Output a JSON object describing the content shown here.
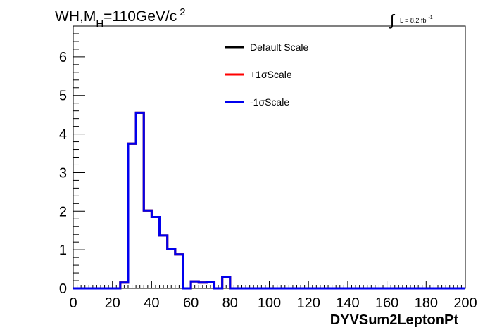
{
  "chart_data": {
    "type": "line",
    "title": {
      "main": "WH,M",
      "sub": "H",
      "rest": "=110GeV/c",
      "sup": "2"
    },
    "lumi": {
      "integral": "∫",
      "text": "L = 8.2 fb",
      "sup": "-1"
    },
    "xlabel": "DYVSum2LeptonPt",
    "ylabel": "",
    "xlim": [
      0,
      200
    ],
    "ylim": [
      0,
      6.8
    ],
    "x_ticks": [
      "0",
      "20",
      "40",
      "60",
      "80",
      "100",
      "120",
      "140",
      "160",
      "180",
      "200"
    ],
    "y_ticks": [
      "0",
      "1",
      "2",
      "3",
      "4",
      "5",
      "6"
    ],
    "grid": false,
    "legend_position": "top-center",
    "bin_width": 4,
    "x_edges": [
      0,
      4,
      8,
      12,
      16,
      20,
      24,
      28,
      32,
      36,
      40,
      44,
      48,
      52,
      56,
      60,
      64,
      68,
      72,
      76,
      80,
      84,
      88,
      92,
      96,
      100,
      104,
      108,
      112,
      116,
      120,
      124,
      128,
      132,
      136,
      140,
      144,
      148,
      152,
      156,
      160,
      164,
      168,
      172,
      176,
      180,
      184,
      188,
      192,
      196,
      200
    ],
    "series": [
      {
        "name": "Default Scale",
        "color": "#000000",
        "values": [
          0,
          0,
          0,
          0,
          0,
          0,
          0.15,
          3.75,
          4.55,
          2.02,
          1.85,
          1.37,
          1.02,
          0.88,
          0,
          0.18,
          0.15,
          0.17,
          0,
          0.3,
          0,
          0,
          0,
          0,
          0,
          0,
          0,
          0,
          0,
          0,
          0,
          0,
          0,
          0,
          0,
          0,
          0,
          0,
          0,
          0,
          0,
          0,
          0,
          0,
          0,
          0,
          0,
          0,
          0,
          0
        ]
      },
      {
        "name": "+1σScale",
        "color": "#ff0000",
        "values": [
          0,
          0,
          0,
          0,
          0,
          0,
          0.15,
          3.75,
          4.55,
          2.02,
          1.85,
          1.37,
          1.02,
          0.88,
          0,
          0.18,
          0.15,
          0.17,
          0,
          0.3,
          0,
          0,
          0,
          0,
          0,
          0,
          0,
          0,
          0,
          0,
          0,
          0,
          0,
          0,
          0,
          0,
          0,
          0,
          0,
          0,
          0,
          0,
          0,
          0,
          0,
          0,
          0,
          0,
          0,
          0
        ]
      },
      {
        "name": "-1σScale",
        "color": "#0000ee",
        "values": [
          0,
          0,
          0,
          0,
          0,
          0,
          0.15,
          3.75,
          4.55,
          2.02,
          1.85,
          1.37,
          1.02,
          0.88,
          0,
          0.18,
          0.15,
          0.17,
          0,
          0.3,
          0,
          0,
          0,
          0,
          0,
          0,
          0,
          0,
          0,
          0,
          0,
          0,
          0,
          0,
          0,
          0,
          0,
          0,
          0,
          0,
          0,
          0,
          0,
          0,
          0,
          0,
          0,
          0,
          0,
          0
        ]
      }
    ]
  }
}
